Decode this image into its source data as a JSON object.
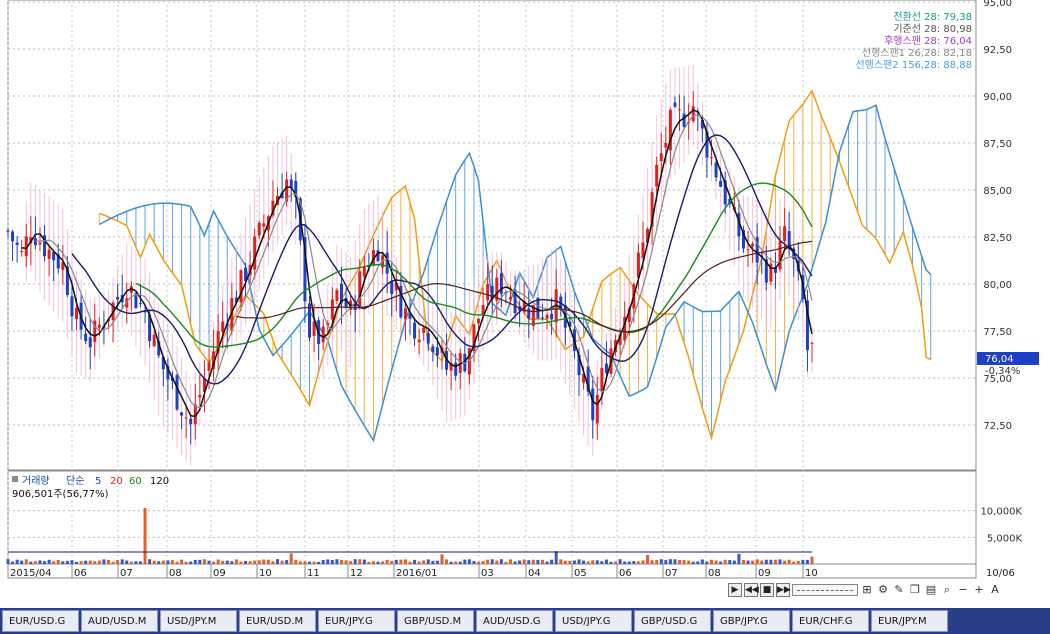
{
  "chart_data": [
    {
      "type": "candlestick",
      "title": "",
      "ylim": [
        70,
        95
      ],
      "yticks": [
        "72,50",
        "75,00",
        "77,50",
        "80,00",
        "82,50",
        "85,00",
        "87,50",
        "90,00",
        "92,50",
        "95,00"
      ],
      "ytick_values": [
        72.5,
        75,
        77.5,
        80,
        82.5,
        85,
        87.5,
        90,
        92.5,
        95
      ],
      "x_labels": [
        "2015/04",
        "06",
        "07",
        "08",
        "09",
        "10",
        "11",
        "12",
        "2016/01",
        "03",
        "04",
        "05",
        "06",
        "07",
        "08",
        "09",
        "10"
      ],
      "future_label": "10/06",
      "current_price": "76,04",
      "change_pct": "-0,34%",
      "close_path": [
        [
          0,
          82.8
        ],
        [
          3,
          81.5
        ],
        [
          5,
          83.0
        ],
        [
          8,
          82.0
        ],
        [
          12,
          81.0
        ],
        [
          15,
          78.0
        ],
        [
          18,
          77.0
        ],
        [
          22,
          78.5
        ],
        [
          26,
          80.0
        ],
        [
          30,
          78.5
        ],
        [
          33,
          76.0
        ],
        [
          37,
          74.0
        ],
        [
          40,
          72.5
        ],
        [
          43,
          75.0
        ],
        [
          47,
          78.0
        ],
        [
          51,
          80.0
        ],
        [
          54,
          82.0
        ],
        [
          58,
          84.5
        ],
        [
          61,
          85.5
        ],
        [
          63,
          84.0
        ],
        [
          66,
          77.5
        ],
        [
          69,
          77.0
        ],
        [
          72,
          79.5
        ],
        [
          75,
          78.5
        ],
        [
          78,
          81.0
        ],
        [
          81,
          82.0
        ],
        [
          84,
          80.0
        ],
        [
          88,
          78.0
        ],
        [
          92,
          77.5
        ],
        [
          96,
          75.5
        ],
        [
          100,
          76.0
        ],
        [
          104,
          79.0
        ],
        [
          108,
          80.0
        ],
        [
          112,
          79.0
        ],
        [
          116,
          78.5
        ],
        [
          120,
          79.0
        ],
        [
          123,
          77.0
        ],
        [
          126,
          74.5
        ],
        [
          128,
          73.0
        ],
        [
          131,
          76.0
        ],
        [
          135,
          78.5
        ],
        [
          139,
          82.0
        ],
        [
          142,
          86.0
        ],
        [
          145,
          88.5
        ],
        [
          148,
          89.0
        ],
        [
          150,
          89.5
        ],
        [
          152,
          88.0
        ],
        [
          155,
          86.0
        ],
        [
          158,
          84.0
        ],
        [
          161,
          82.0
        ],
        [
          164,
          81.5
        ],
        [
          167,
          80.5
        ],
        [
          170,
          82.5
        ],
        [
          172,
          81.0
        ],
        [
          174,
          79.0
        ],
        [
          175,
          76.5
        ]
      ],
      "ichimoku_span_a_color": "#f39c12",
      "ichimoku_span_b_color": "#3a8fd9",
      "bollinger_color": "#f4a6cf",
      "up_color": "#e02020",
      "down_color": "#1f3fc4",
      "legend_top": [
        {
          "text": "전환선 28: 79,38",
          "color": "#1a9a8a"
        },
        {
          "text": "기준선 28: 80,98",
          "color": "#555555"
        },
        {
          "text": "후행스팬 28: 76,04",
          "color": "#a040c0"
        },
        {
          "text": "선행스팬1 26,28: 82,18",
          "color": "#888888"
        },
        {
          "text": "선행스팬2 156,28: 88,88",
          "color": "#4aa0d8"
        }
      ]
    },
    {
      "type": "bar",
      "title": "거래량",
      "legend": [
        {
          "text": "거래량",
          "color": "#1a4fb5"
        },
        {
          "text": "단순",
          "color": "#1a4fb5"
        },
        {
          "text": "5",
          "color": "#1a4fb5"
        },
        {
          "text": "20",
          "color": "#e02020"
        },
        {
          "text": "60",
          "color": "#1a8a1a"
        },
        {
          "text": "120",
          "color": "#111111"
        }
      ],
      "volume_label": "906,501주(56,77%)",
      "yticks": [
        "5,000K",
        "10,000K"
      ],
      "ytick_values": [
        5000,
        10000
      ],
      "ylim": [
        0,
        12000
      ],
      "base_level": 650,
      "spikes": [
        [
          30,
          10500
        ],
        [
          62,
          2000
        ],
        [
          95,
          1800
        ],
        [
          120,
          2400
        ],
        [
          140,
          1700
        ],
        [
          160,
          1900
        ],
        [
          176,
          1400
        ]
      ]
    }
  ],
  "toolbar": {
    "btn_right": "▶",
    "btn_prev": "◀◀",
    "btn_stop": "■",
    "btn_next": "▶▶",
    "btn_minus": "−",
    "btn_plus": "+",
    "btn_a": "A"
  },
  "tabs": [
    "EUR/USD.G",
    "AUD/USD.M",
    "USD/JPY.M",
    "EUR/USD.M",
    "EUR/JPY.G",
    "GBP/USD.M",
    "AUD/USD.G",
    "USD/JPY.G",
    "GBP/USD.G",
    "GBP/JPY.G",
    "EUR/CHF.G",
    "EUR/JPY.M"
  ]
}
